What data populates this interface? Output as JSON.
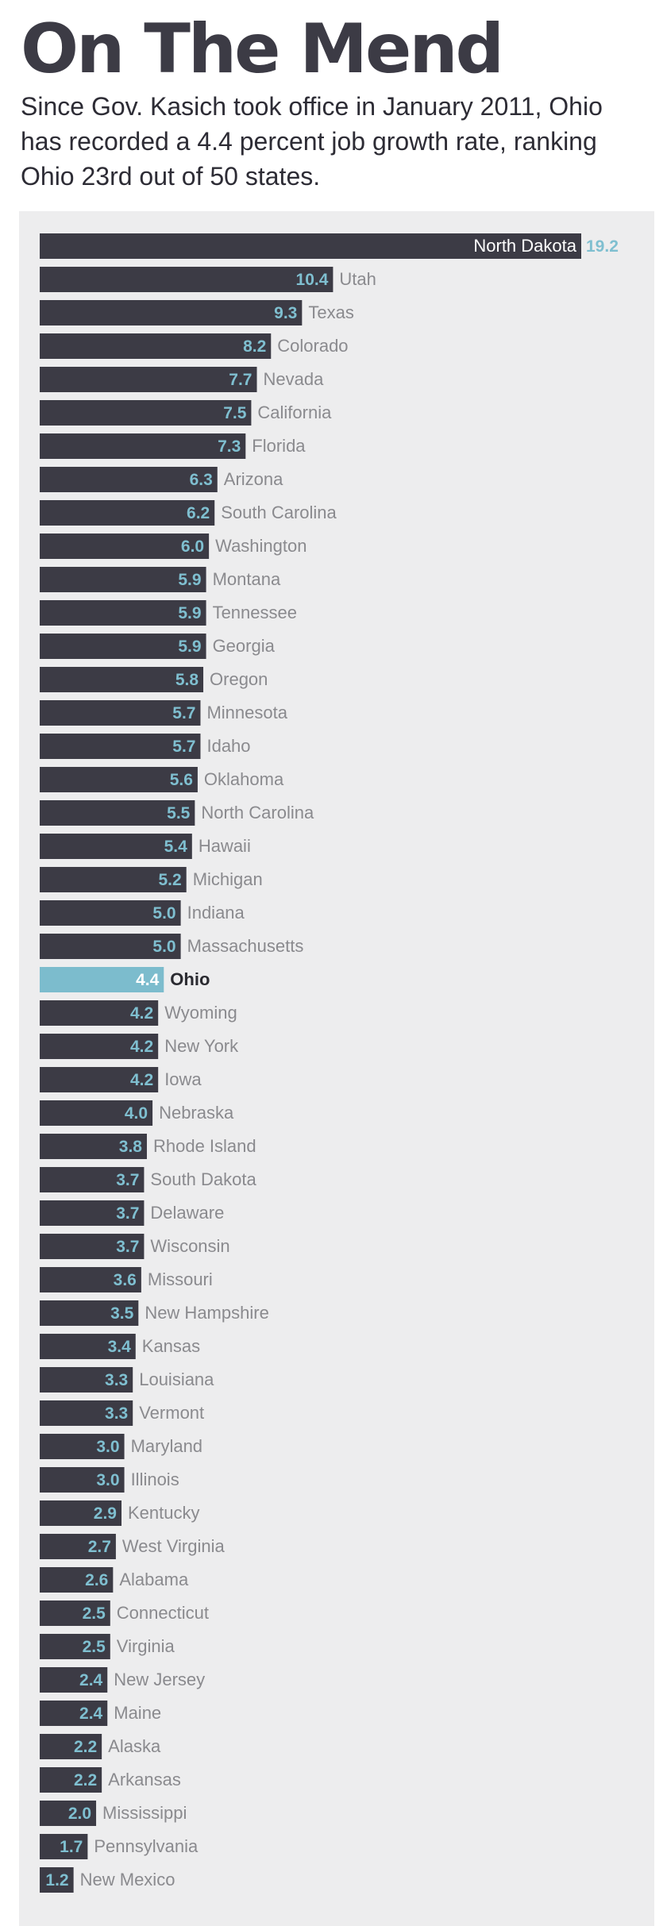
{
  "header": {
    "title": "On The Mend",
    "subtitle": "Since Gov. Kasich took office in January 2011, Ohio has recorded a 4.4 percent job growth rate, ranking Ohio 23rd out of 50 states."
  },
  "colors": {
    "bar": "#3c3b45",
    "highlight": "#7cbccd",
    "value_text": "#7fbfd0",
    "label_text": "#8a8a8e",
    "highlight_label": "#2a2a30",
    "panel": "#ededee"
  },
  "chart_data": {
    "type": "bar",
    "orientation": "horizontal",
    "title": "On The Mend",
    "highlight": "Ohio",
    "categories": [
      "North Dakota",
      "Utah",
      "Texas",
      "Colorado",
      "Nevada",
      "California",
      "Florida",
      "Arizona",
      "South Carolina",
      "Washington",
      "Montana",
      "Tennessee",
      "Georgia",
      "Oregon",
      "Minnesota",
      "Idaho",
      "Oklahoma",
      "North Carolina",
      "Hawaii",
      "Michigan",
      "Indiana",
      "Massachusetts",
      "Ohio",
      "Wyoming",
      "New York",
      "Iowa",
      "Nebraska",
      "Rhode Island",
      "South Dakota",
      "Delaware",
      "Wisconsin",
      "Missouri",
      "New Hampshire",
      "Kansas",
      "Louisiana",
      "Vermont",
      "Maryland",
      "Illinois",
      "Kentucky",
      "West Virginia",
      "Alabama",
      "Connecticut",
      "Virginia",
      "New Jersey",
      "Maine",
      "Alaska",
      "Arkansas",
      "Mississippi",
      "Pennsylvania",
      "New Mexico"
    ],
    "values": [
      19.2,
      10.4,
      9.3,
      8.2,
      7.7,
      7.5,
      7.3,
      6.3,
      6.2,
      6.0,
      5.9,
      5.9,
      5.9,
      5.8,
      5.7,
      5.7,
      5.6,
      5.5,
      5.4,
      5.2,
      5.0,
      5.0,
      4.4,
      4.2,
      4.2,
      4.2,
      4.0,
      3.8,
      3.7,
      3.7,
      3.7,
      3.6,
      3.5,
      3.4,
      3.3,
      3.3,
      3.0,
      3.0,
      2.9,
      2.7,
      2.6,
      2.5,
      2.5,
      2.4,
      2.4,
      2.2,
      2.2,
      2.0,
      1.7,
      1.2
    ],
    "value_labels": [
      "19.2",
      "10.4",
      "9.3",
      "8.2",
      "7.7",
      "7.5",
      "7.3",
      "6.3",
      "6.2",
      "6.0",
      "5.9",
      "5.9",
      "5.9",
      "5.8",
      "5.7",
      "5.7",
      "5.6",
      "5.5",
      "5.4",
      "5.2",
      "5.0",
      "5.0",
      "4.4",
      "4.2",
      "4.2",
      "4.2",
      "4.0",
      "3.8",
      "3.7",
      "3.7",
      "3.7",
      "3.6",
      "3.5",
      "3.4",
      "3.3",
      "3.3",
      "3.0",
      "3.0",
      "2.9",
      "2.7",
      "2.6",
      "2.5",
      "2.5",
      "2.4",
      "2.4",
      "2.2",
      "2.2",
      "2.0",
      "1.7",
      "1.2"
    ],
    "xlim": [
      0,
      19.2
    ],
    "grid": false,
    "legend": "none"
  }
}
